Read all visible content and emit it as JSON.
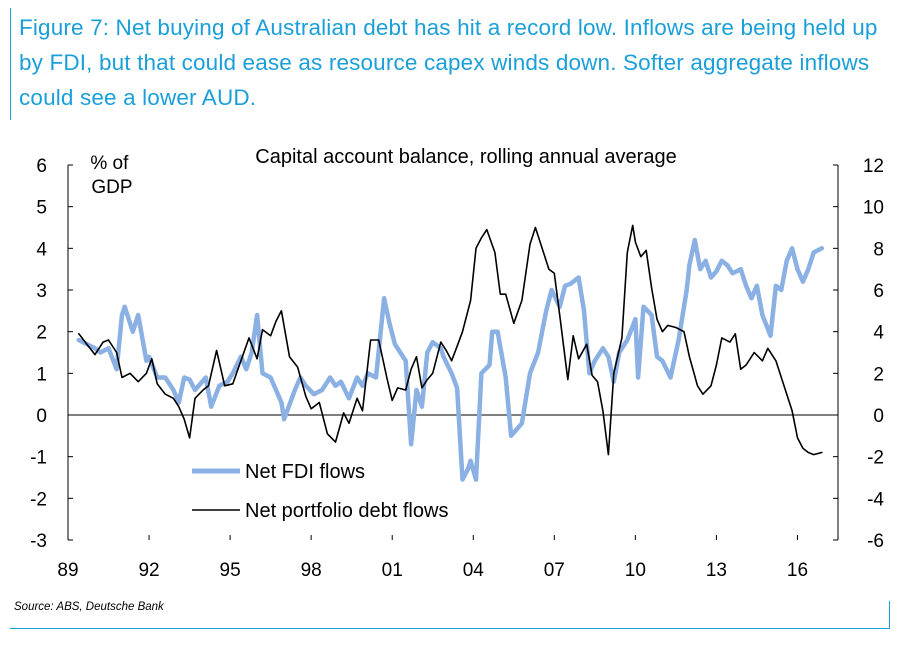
{
  "caption": "Figure 7: Net buying of Australian debt has hit a record low. Inflows are being held up by FDI, but that could ease as resource capex winds down. Softer aggregate inflows could see a lower AUD.",
  "source": "Source: ABS, Deutsche Bank",
  "colors": {
    "fdi": "#8bb0e3",
    "debt": "#000000",
    "caption": "#1a9fd9"
  },
  "chart_data": {
    "type": "line",
    "title": "Capital account balance, rolling annual average",
    "ylabel_left": [
      "% of",
      "GDP"
    ],
    "ylim_left": [
      -3,
      6
    ],
    "ylim_right": [
      -6,
      12
    ],
    "yticks_left": [
      "6",
      "5",
      "4",
      "3",
      "2",
      "1",
      "0",
      "-1",
      "-2",
      "-3"
    ],
    "yticks_right": [
      "12",
      "10",
      "8",
      "6",
      "4",
      "2",
      "0",
      "-2",
      "-4",
      "-6"
    ],
    "xlim": [
      1989,
      2017.5
    ],
    "xticks": [
      {
        "year": 1989,
        "label": "89"
      },
      {
        "year": 1992,
        "label": "92"
      },
      {
        "year": 1995,
        "label": "95"
      },
      {
        "year": 1998,
        "label": "98"
      },
      {
        "year": 2001,
        "label": "01"
      },
      {
        "year": 2004,
        "label": "04"
      },
      {
        "year": 2007,
        "label": "07"
      },
      {
        "year": 2010,
        "label": "10"
      },
      {
        "year": 2013,
        "label": "13"
      },
      {
        "year": 2016,
        "label": "16"
      }
    ],
    "legend": [
      "Net FDI flows",
      "Net portfolio debt flows"
    ],
    "series": [
      {
        "name": "Net FDI flows",
        "axis": "left",
        "x": [
          1989.4,
          1989.7,
          1990.0,
          1990.2,
          1990.5,
          1990.8,
          1991.0,
          1991.1,
          1991.4,
          1991.6,
          1991.9,
          1992.0,
          1992.3,
          1992.6,
          1992.9,
          1993.1,
          1993.3,
          1993.5,
          1993.7,
          1994.1,
          1994.3,
          1994.6,
          1994.9,
          1995.1,
          1995.4,
          1995.6,
          1995.8,
          1996.0,
          1996.2,
          1996.5,
          1996.9,
          1997.0,
          1997.4,
          1997.6,
          1997.8,
          1998.1,
          1998.4,
          1998.7,
          1998.9,
          1999.1,
          1999.4,
          1999.7,
          1999.9,
          2000.1,
          2000.4,
          2000.7,
          2000.9,
          2001.1,
          2001.3,
          2001.5,
          2001.7,
          2001.9,
          2002.1,
          2002.3,
          2002.5,
          2002.8,
          2002.9,
          2003.2,
          2003.4,
          2003.6,
          2003.8,
          2003.9,
          2004.1,
          2004.3,
          2004.6,
          2004.7,
          2004.9,
          2005.2,
          2005.4,
          2005.8,
          2006.1,
          2006.4,
          2006.7,
          2006.9,
          2007.2,
          2007.4,
          2007.6,
          2007.9,
          2008.1,
          2008.3,
          2008.5,
          2008.8,
          2009.0,
          2009.2,
          2009.4,
          2009.7,
          2010.0,
          2010.1,
          2010.3,
          2010.6,
          2010.8,
          2011.0,
          2011.3,
          2011.6,
          2011.9,
          2012.0,
          2012.2,
          2012.4,
          2012.6,
          2012.8,
          2013.0,
          2013.2,
          2013.4,
          2013.6,
          2013.9,
          2014.1,
          2014.3,
          2014.5,
          2014.7,
          2015.0,
          2015.2,
          2015.4,
          2015.6,
          2015.8,
          2016.0,
          2016.2,
          2016.4,
          2016.6,
          2016.9
        ],
        "y": [
          1.8,
          1.7,
          1.6,
          1.5,
          1.6,
          1.1,
          2.4,
          2.6,
          2.0,
          2.4,
          1.3,
          1.4,
          0.9,
          0.9,
          0.6,
          0.3,
          0.9,
          0.85,
          0.6,
          0.9,
          0.2,
          0.7,
          0.8,
          1.0,
          1.4,
          1.1,
          1.5,
          2.4,
          1.0,
          0.9,
          0.3,
          -0.1,
          0.6,
          0.9,
          0.7,
          0.5,
          0.6,
          0.9,
          0.7,
          0.8,
          0.4,
          0.9,
          0.7,
          1.0,
          0.9,
          2.8,
          2.2,
          1.7,
          1.5,
          1.3,
          -0.7,
          0.6,
          0.2,
          1.5,
          1.75,
          1.6,
          1.4,
          1.0,
          0.65,
          -1.55,
          -1.3,
          -1.1,
          -1.55,
          1.0,
          1.2,
          2.0,
          2.0,
          0.9,
          -0.5,
          -0.2,
          1.0,
          1.5,
          2.5,
          3.0,
          2.6,
          3.1,
          3.15,
          3.3,
          2.5,
          1.0,
          1.3,
          1.6,
          1.4,
          0.8,
          1.5,
          1.8,
          2.3,
          0.9,
          2.6,
          2.4,
          1.4,
          1.3,
          0.9,
          1.8,
          3.0,
          3.6,
          4.2,
          3.5,
          3.7,
          3.3,
          3.45,
          3.7,
          3.6,
          3.4,
          3.5,
          3.1,
          2.8,
          3.1,
          2.4,
          1.9,
          3.1,
          3.0,
          3.7,
          4.0,
          3.5,
          3.2,
          3.5,
          3.9,
          4.0
        ]
      },
      {
        "name": "Net portfolio debt flows",
        "axis": "right",
        "x": [
          1989.4,
          1989.7,
          1990.0,
          1990.3,
          1990.5,
          1990.8,
          1991.0,
          1991.3,
          1991.6,
          1991.9,
          1992.1,
          1992.3,
          1992.6,
          1992.9,
          1993.1,
          1993.3,
          1993.5,
          1993.7,
          1994.0,
          1994.2,
          1994.5,
          1994.8,
          1995.1,
          1995.4,
          1995.7,
          1996.0,
          1996.2,
          1996.5,
          1996.7,
          1996.9,
          1997.2,
          1997.5,
          1997.8,
          1998.0,
          1998.3,
          1998.6,
          1998.9,
          1999.2,
          1999.4,
          1999.7,
          1999.9,
          2000.2,
          2000.5,
          2000.8,
          2001.0,
          2001.2,
          2001.5,
          2001.7,
          2001.9,
          2002.1,
          2002.3,
          2002.5,
          2002.8,
          2003.0,
          2003.2,
          2003.4,
          2003.6,
          2003.9,
          2004.1,
          2004.3,
          2004.5,
          2004.8,
          2005.0,
          2005.2,
          2005.5,
          2005.8,
          2006.1,
          2006.3,
          2006.6,
          2006.8,
          2007.0,
          2007.2,
          2007.5,
          2007.7,
          2007.9,
          2008.2,
          2008.4,
          2008.6,
          2008.8,
          2009.0,
          2009.2,
          2009.5,
          2009.7,
          2009.9,
          2010.0,
          2010.2,
          2010.4,
          2010.6,
          2010.8,
          2011.0,
          2011.2,
          2011.5,
          2011.8,
          2012.0,
          2012.3,
          2012.5,
          2012.8,
          2013.0,
          2013.2,
          2013.5,
          2013.7,
          2013.9,
          2014.1,
          2014.4,
          2014.7,
          2014.9,
          2015.2,
          2015.5,
          2015.8,
          2016.0,
          2016.2,
          2016.4,
          2016.6,
          2016.9
        ],
        "y": [
          3.9,
          3.4,
          2.9,
          3.5,
          3.6,
          3.0,
          1.8,
          2.0,
          1.6,
          2.0,
          2.7,
          1.5,
          1.0,
          0.8,
          0.4,
          -0.2,
          -1.1,
          0.8,
          1.2,
          1.4,
          3.1,
          1.4,
          1.5,
          2.6,
          3.7,
          2.7,
          4.1,
          3.8,
          4.5,
          5.0,
          2.8,
          2.3,
          0.9,
          0.3,
          0.6,
          -0.9,
          -1.3,
          0.1,
          -0.4,
          0.8,
          0.2,
          3.6,
          3.6,
          1.8,
          0.7,
          1.3,
          1.2,
          2.2,
          2.8,
          1.3,
          1.7,
          2.0,
          3.5,
          3.1,
          2.6,
          3.3,
          4.0,
          5.5,
          8.0,
          8.5,
          8.9,
          7.8,
          5.8,
          5.8,
          4.4,
          5.5,
          8.2,
          9.0,
          7.8,
          7.0,
          6.8,
          4.8,
          1.7,
          3.8,
          2.7,
          3.4,
          1.9,
          1.6,
          0.2,
          -1.9,
          2.0,
          3.7,
          7.8,
          9.1,
          8.3,
          7.6,
          7.9,
          6.1,
          4.6,
          4.0,
          4.3,
          4.2,
          4.0,
          2.8,
          1.4,
          1.0,
          1.4,
          2.4,
          3.7,
          3.5,
          3.9,
          2.2,
          2.4,
          3.0,
          2.6,
          3.2,
          2.6,
          1.4,
          0.2,
          -1.1,
          -1.6,
          -1.8,
          -1.9,
          -1.8
        ]
      }
    ]
  }
}
